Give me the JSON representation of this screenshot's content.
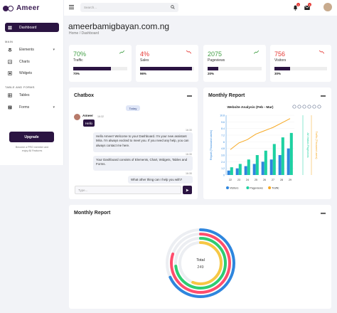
{
  "sidebar": {
    "logo_text": "Ameer",
    "dashboard_label": "Dashboard",
    "section_main": "MAIN",
    "elements_label": "Elements",
    "charts_label": "Charts",
    "widgets_label": "Widgets",
    "section_tables_forms": "TABLE AND FORMS",
    "tables_label": "Tables",
    "forms_label": "Forms",
    "upgrade_label": "Upgrade",
    "promo_line1": "Become a PRO member and",
    "promo_line2": "enjoy All Features"
  },
  "topbar": {
    "search_placeholder": "Search...",
    "notification_count": "1",
    "message_count": "3"
  },
  "page": {
    "title": "ameerbamigbayan.com.ng",
    "breadcrumb_home": "Home",
    "breadcrumb_sep": "/",
    "breadcrumb_current": "Dashboard"
  },
  "stats": [
    {
      "value": "70%",
      "label": "Traffic",
      "percent": "70%",
      "color": "#43a047",
      "progress": 70
    },
    {
      "value": "4%",
      "label": "Sales",
      "percent": "96%",
      "color": "#e53935",
      "progress": 96
    },
    {
      "value": "2075",
      "label": "Pageviews",
      "percent": "20%",
      "color": "#43a047",
      "progress": 20
    },
    {
      "value": "756",
      "label": "Visitors",
      "percent": "30%",
      "color": "#e53935",
      "progress": 30
    }
  ],
  "chatbox": {
    "title": "Chatbox",
    "today": "Today",
    "sender": "Ameer",
    "sender_time": "16:32",
    "hello": "Hello",
    "msg1": "Hello Ameer! Welcome to your Dashboard. I'm your new assistant Mira. I'm always excited to meet you. If you need any help, you can always contact me here.",
    "msg1_time": "16:30",
    "msg2": "Your Dashboard consists of Elements, Chart, Widgets, Tables and Forms.",
    "msg2_time": "16:30",
    "msg3": "What other thing can I help you with?",
    "msg3_time": "16:30",
    "input_placeholder": "Type..."
  },
  "monthly_report_1": {
    "title": "Monthly Report"
  },
  "chart_data": {
    "type": "bar",
    "title": "Website Analysis (Feb - Mar)",
    "categories": [
      "22",
      "23",
      "24",
      "25",
      "26",
      "27",
      "28",
      "29"
    ],
    "ylabel_left": "Report (Thousand users)",
    "ylabel_right1": "All Visitors Pageviews",
    "ylabel_right2": "Traffic (Thousand users)",
    "y_ticks": [
      "0",
      "1.2",
      "2.4",
      "3.6",
      "4.8",
      "6",
      "7.2",
      "8.4",
      "9.6",
      "10.8"
    ],
    "ylim": [
      0,
      10.8
    ],
    "series": [
      {
        "name": "Visitors",
        "color": "#2e86de",
        "type": "bar",
        "values": [
          0.8,
          1.2,
          1.6,
          2.0,
          2.4,
          2.8,
          3.6,
          4.8
        ]
      },
      {
        "name": "Pageviews",
        "color": "#1dd1a1",
        "type": "bar",
        "values": [
          1.4,
          2.0,
          2.8,
          3.6,
          4.4,
          5.6,
          6.8,
          7.6
        ]
      },
      {
        "name": "Traffic",
        "color": "#f6a821",
        "type": "line",
        "values": [
          4.6,
          5.8,
          6.4,
          7.4,
          8.0,
          8.6,
          9.4,
          10.2
        ]
      }
    ],
    "legend_position": "bottom"
  },
  "monthly_report_2": {
    "title": "Monthly Report",
    "total_label": "Total",
    "total_value": "249",
    "rings": [
      {
        "color": "#2e86de",
        "fraction": 0.68
      },
      {
        "color": "#ff4d6d",
        "fraction": 0.8
      },
      {
        "color": "#2ecc71",
        "fraction": 0.73
      },
      {
        "color": "#f6c744",
        "fraction": 0.56
      }
    ]
  }
}
